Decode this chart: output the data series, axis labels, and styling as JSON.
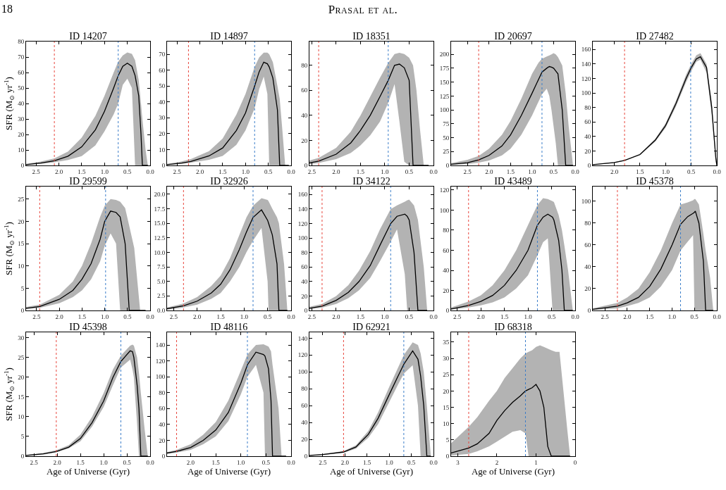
{
  "chart_data": [
    {
      "type": "line",
      "title": "ID 14207",
      "annotations": [
        "18",
        "Prasal et al."
      ],
      "ylabel": "SFR (M$_{⊙}$ yr$^{-1}$)",
      "xlim": [
        2.72,
        0
      ],
      "xticks": [
        2.5,
        {
          "value": 2,
          "label": "2.0"
        },
        1.5,
        {
          "value": 1,
          "label": "1.0"
        },
        0.5,
        {
          "value": 0,
          "label": "0.0"
        }
      ],
      "ylim": [
        0,
        80
      ],
      "yticks": [
        0,
        10,
        20,
        30,
        40,
        50,
        60,
        70,
        80
      ],
      "grid": false,
      "ref_lines": [
        {
          "axis": "x",
          "value": 2.1,
          "color": "#e8453c",
          "line_style": "dotted"
        },
        {
          "axis": "x",
          "value": 0.7,
          "color": "#3a7dc9",
          "line_style": "dotted"
        }
      ],
      "series": [
        {
          "color": "#000000",
          "x": [
            2.72,
            2.4,
            2.1,
            1.8,
            1.5,
            1.2,
            1.0,
            0.8,
            0.7,
            0.6,
            0.5,
            0.4,
            0.33,
            0.25,
            0.2,
            0.17,
            0.1,
            0.05
          ],
          "values": [
            0.5,
            1.5,
            3,
            6,
            12,
            23,
            35,
            50,
            58,
            64,
            66,
            64,
            58,
            45,
            20,
            0,
            0,
            0
          ],
          "lower": [
            0.3,
            1,
            2,
            3.5,
            6,
            13,
            22,
            33,
            40,
            52,
            56,
            50,
            0,
            0,
            0,
            0,
            0,
            0
          ],
          "upper": [
            1,
            2.5,
            4.5,
            9,
            18,
            32,
            45,
            60,
            67,
            71,
            73,
            72,
            68,
            55,
            40,
            30,
            10,
            0
          ]
        }
      ]
    },
    {
      "type": "line",
      "title": "ID 14897",
      "xlim": [
        2.72,
        0
      ],
      "xticks": [
        2.5,
        {
          "value": 2,
          "label": "2.0"
        },
        1.5,
        {
          "value": 1,
          "label": "1.0"
        },
        0.5,
        {
          "value": 0,
          "label": "0.0"
        }
      ],
      "ylim": [
        0,
        78
      ],
      "yticks": [
        0,
        10,
        20,
        30,
        40,
        50,
        60,
        70
      ],
      "grid": false,
      "ref_lines": [
        {
          "axis": "x",
          "value": 2.25,
          "color": "#e8453c",
          "line_style": "dotted"
        },
        {
          "axis": "x",
          "value": 0.8,
          "color": "#3a7dc9",
          "line_style": "dotted"
        }
      ],
      "series": [
        {
          "color": "#000000",
          "x": [
            2.72,
            2.4,
            2.2,
            1.8,
            1.5,
            1.2,
            1.0,
            0.8,
            0.7,
            0.6,
            0.52,
            0.48,
            0.4,
            0.3,
            0.25,
            0.2,
            0.13,
            0.05
          ],
          "values": [
            0.5,
            1.5,
            2.5,
            6,
            11,
            22,
            33,
            50,
            59,
            65,
            64,
            62,
            55,
            35,
            0,
            0,
            0,
            0
          ],
          "lower": [
            0.3,
            1,
            1.8,
            3.5,
            6,
            13,
            22,
            36,
            48,
            56,
            45,
            0,
            0,
            0,
            0,
            0,
            0,
            0
          ],
          "upper": [
            1,
            2.5,
            4,
            9,
            17,
            32,
            45,
            62,
            68,
            71,
            71,
            70,
            65,
            50,
            42,
            25,
            0,
            0
          ]
        }
      ]
    },
    {
      "type": "line",
      "title": "ID 18351",
      "xlim": [
        2.55,
        0
      ],
      "xticks": [
        2.5,
        {
          "value": 2,
          "label": "2.0"
        },
        1.5,
        {
          "value": 1,
          "label": "1.0"
        },
        0.5,
        {
          "value": 0,
          "label": "0.0"
        }
      ],
      "ylim": [
        0,
        99
      ],
      "yticks": [
        0,
        20,
        40,
        60,
        80
      ],
      "grid": false,
      "ref_lines": [
        {
          "axis": "x",
          "value": 2.36,
          "color": "#e8453c",
          "line_style": "dotted"
        },
        {
          "axis": "x",
          "value": 0.93,
          "color": "#3a7dc9",
          "line_style": "dotted"
        }
      ],
      "series": [
        {
          "color": "#000000",
          "x": [
            2.55,
            2.36,
            2.0,
            1.7,
            1.5,
            1.3,
            1.1,
            0.93,
            0.8,
            0.7,
            0.6,
            0.5,
            0.42,
            0.35,
            0.28,
            0.2,
            0.1
          ],
          "values": [
            2,
            3.5,
            9,
            18,
            28,
            40,
            55,
            68,
            80,
            81,
            78,
            68,
            0,
            0,
            0,
            0,
            0
          ],
          "lower": [
            1,
            2,
            5,
            10,
            16,
            24,
            35,
            50,
            65,
            35,
            3,
            0,
            0,
            0,
            0,
            0,
            0
          ],
          "upper": [
            4,
            6,
            14,
            27,
            40,
            55,
            70,
            82,
            89,
            90,
            89,
            86,
            80,
            60,
            30,
            0,
            0
          ]
        }
      ]
    },
    {
      "type": "line",
      "title": "ID 20697",
      "xlim": [
        2.88,
        0
      ],
      "xticks": [
        2.5,
        {
          "value": 2,
          "label": "2.0"
        },
        1.5,
        {
          "value": 1,
          "label": "1.0"
        },
        0.5,
        {
          "value": 0,
          "label": "0.0"
        }
      ],
      "ylim": [
        0,
        223
      ],
      "yticks": [
        0,
        25,
        50,
        75,
        100,
        125,
        150,
        175,
        200
      ],
      "grid": false,
      "ref_lines": [
        {
          "axis": "x",
          "value": 2.24,
          "color": "#e8453c",
          "line_style": "dotted"
        },
        {
          "axis": "x",
          "value": 0.77,
          "color": "#3a7dc9",
          "line_style": "dotted"
        }
      ],
      "series": [
        {
          "color": "#000000",
          "x": [
            2.88,
            2.5,
            2.24,
            2.0,
            1.7,
            1.5,
            1.25,
            1.0,
            0.85,
            0.77,
            0.66,
            0.6,
            0.55,
            0.5,
            0.45,
            0.4,
            0.3,
            0.22,
            0.15,
            0.05
          ],
          "values": [
            2,
            5,
            10,
            18,
            35,
            55,
            90,
            130,
            155,
            168,
            175,
            178,
            177,
            175,
            170,
            165,
            100,
            0,
            0,
            0
          ],
          "lower": [
            1,
            2.5,
            5,
            9,
            18,
            30,
            55,
            90,
            115,
            128,
            138,
            125,
            100,
            70,
            40,
            0,
            0,
            0,
            0,
            0
          ],
          "upper": [
            4,
            10,
            17,
            30,
            55,
            80,
            120,
            165,
            185,
            192,
            196,
            198,
            200,
            202,
            200,
            195,
            180,
            130,
            70,
            0
          ]
        }
      ]
    },
    {
      "type": "line",
      "title": "ID 27482",
      "xlim": [
        2.42,
        0
      ],
      "xticks": [
        {
          "value": 2,
          "label": "2.0"
        },
        1.5,
        {
          "value": 1,
          "label": "1.0"
        },
        0.5,
        {
          "value": 0,
          "label": "0.0"
        }
      ],
      "ylim": [
        0,
        171
      ],
      "yticks": [
        0,
        20,
        40,
        60,
        80,
        100,
        120,
        140,
        160
      ],
      "grid": false,
      "ref_lines": [
        {
          "axis": "x",
          "value": 1.8,
          "color": "#e8453c",
          "line_style": "dotted"
        },
        {
          "axis": "x",
          "value": 0.51,
          "color": "#3a7dc9",
          "line_style": "dotted"
        }
      ],
      "series": [
        {
          "color": "#000000",
          "x": [
            2.42,
            2.0,
            1.8,
            1.5,
            1.2,
            1.0,
            0.8,
            0.6,
            0.5,
            0.4,
            0.32,
            0.2,
            0.1,
            0.02,
            0
          ],
          "values": [
            1,
            4,
            7,
            15,
            35,
            55,
            85,
            120,
            135,
            147,
            150,
            135,
            80,
            10,
            0
          ],
          "lower": [
            0.8,
            3.5,
            6.5,
            14,
            33,
            52,
            81,
            115,
            130,
            143,
            146,
            128,
            70,
            5,
            0
          ],
          "upper": [
            1.2,
            4.5,
            7.5,
            16,
            37,
            58,
            89,
            125,
            140,
            152,
            155,
            140,
            88,
            15,
            0
          ]
        }
      ]
    },
    {
      "type": "line",
      "title": "ID 29599",
      "ylabel": "SFR (M$_{⊙}$ yr$^{-1}$)",
      "xlim": [
        2.73,
        0
      ],
      "xticks": [
        2.5,
        {
          "value": 2,
          "label": "2.0"
        },
        1.5,
        {
          "value": 1,
          "label": "1.0"
        },
        0.5,
        {
          "value": 0,
          "label": "0.0"
        }
      ],
      "ylim": [
        0,
        27.8
      ],
      "yticks": [
        0,
        5,
        10,
        15,
        20,
        25
      ],
      "grid": false,
      "ref_lines": [
        {
          "axis": "x",
          "value": 2.43,
          "color": "#e8453c",
          "line_style": "dotted"
        },
        {
          "axis": "x",
          "value": 0.98,
          "color": "#3a7dc9",
          "line_style": "dotted"
        }
      ],
      "series": [
        {
          "color": "#000000",
          "x": [
            2.73,
            2.43,
            2.0,
            1.7,
            1.5,
            1.3,
            1.1,
            1.0,
            0.87,
            0.75,
            0.66,
            0.55,
            0.46,
            0.35,
            0.22,
            0.1
          ],
          "values": [
            0.5,
            0.9,
            2.5,
            4.5,
            7,
            10.5,
            16,
            20,
            22.3,
            22,
            21,
            15,
            0,
            0,
            0,
            0
          ],
          "lower": [
            0.3,
            0.6,
            1.6,
            3,
            4.5,
            7,
            11,
            14.5,
            17.3,
            15,
            0,
            0,
            0,
            0,
            0,
            0
          ],
          "upper": [
            0.8,
            1.3,
            3.5,
            6.5,
            10,
            15,
            21,
            23.5,
            25,
            24.8,
            24.4,
            23,
            19,
            14,
            0,
            0
          ]
        }
      ]
    },
    {
      "type": "line",
      "title": "ID 32926",
      "xlim": [
        2.64,
        0
      ],
      "xticks": [
        2.5,
        {
          "value": 2,
          "label": "2.0"
        },
        1.5,
        {
          "value": 1,
          "label": "1.0"
        },
        0.5,
        {
          "value": 0,
          "label": "0.0"
        }
      ],
      "ylim": [
        0,
        21.3
      ],
      "yticks": [
        {
          "value": 0,
          "label": "0.0"
        },
        2.5,
        {
          "value": 5,
          "label": "5.0"
        },
        7.5,
        {
          "value": 10,
          "label": "10.0"
        },
        12.5,
        {
          "value": 15,
          "label": "15.0"
        },
        17.5,
        {
          "value": 20,
          "label": "20.0"
        }
      ],
      "grid": false,
      "ref_lines": [
        {
          "axis": "x",
          "value": 2.29,
          "color": "#e8453c",
          "line_style": "dotted"
        },
        {
          "axis": "x",
          "value": 0.81,
          "color": "#3a7dc9",
          "line_style": "dotted"
        }
      ],
      "series": [
        {
          "color": "#000000",
          "x": [
            2.64,
            2.29,
            2.0,
            1.7,
            1.5,
            1.3,
            1.1,
            0.95,
            0.81,
            0.63,
            0.5,
            0.48,
            0.4,
            0.3,
            0.26,
            0.15,
            0.08
          ],
          "values": [
            0.3,
            0.8,
            1.6,
            3,
            4.5,
            7,
            10.5,
            13.5,
            16,
            17.3,
            15.5,
            15,
            13,
            8,
            0,
            0,
            0
          ],
          "lower": [
            0.15,
            0.5,
            1,
            2,
            3,
            5,
            7.5,
            10,
            12,
            14.2,
            5,
            0,
            0,
            0,
            0,
            0,
            0
          ],
          "upper": [
            0.5,
            1.2,
            2.3,
            4.2,
            6,
            9,
            13,
            16,
            18,
            19.3,
            19,
            18.8,
            17.5,
            16,
            15,
            8,
            0
          ]
        }
      ]
    },
    {
      "type": "line",
      "title": "ID 34122",
      "xlim": [
        2.55,
        0
      ],
      "xticks": [
        2.5,
        {
          "value": 2,
          "label": "2.0"
        },
        1.5,
        {
          "value": 1,
          "label": "1.0"
        },
        0.5,
        {
          "value": 0,
          "label": "0.0"
        }
      ],
      "ylim": [
        0,
        171
      ],
      "yticks": [
        0,
        20,
        40,
        60,
        80,
        100,
        120,
        140,
        160
      ],
      "grid": false,
      "ref_lines": [
        {
          "axis": "x",
          "value": 2.29,
          "color": "#e8453c",
          "line_style": "dotted"
        },
        {
          "axis": "x",
          "value": 0.88,
          "color": "#3a7dc9",
          "line_style": "dotted"
        }
      ],
      "series": [
        {
          "color": "#000000",
          "x": [
            2.55,
            2.29,
            2.0,
            1.75,
            1.53,
            1.3,
            1.1,
            0.88,
            0.75,
            0.59,
            0.54,
            0.5,
            0.4,
            0.32,
            0.2,
            0.13
          ],
          "values": [
            3,
            6,
            14,
            25,
            40,
            62,
            90,
            120,
            130,
            133,
            130,
            125,
            80,
            0,
            0,
            0
          ],
          "lower": [
            2,
            4,
            9,
            17,
            28,
            45,
            68,
            95,
            112,
            50,
            0,
            0,
            0,
            0,
            0,
            0
          ],
          "upper": [
            5,
            9,
            20,
            35,
            55,
            82,
            112,
            140,
            145,
            150,
            152,
            153,
            145,
            125,
            60,
            0
          ]
        }
      ]
    },
    {
      "type": "line",
      "title": "ID 43489",
      "xlim": [
        2.63,
        0
      ],
      "xticks": [
        2.5,
        {
          "value": 2,
          "label": "2.0"
        },
        1.5,
        {
          "value": 1,
          "label": "1.0"
        },
        0.5,
        {
          "value": 0,
          "label": "0.0"
        }
      ],
      "ylim": [
        0,
        123.5
      ],
      "yticks": [
        0,
        20,
        40,
        60,
        80,
        100,
        120
      ],
      "grid": false,
      "ref_lines": [
        {
          "axis": "x",
          "value": 2.26,
          "color": "#e8453c",
          "line_style": "dotted"
        },
        {
          "axis": "x",
          "value": 0.8,
          "color": "#3a7dc9",
          "line_style": "dotted"
        }
      ],
      "series": [
        {
          "color": "#000000",
          "x": [
            2.63,
            2.26,
            2.0,
            1.75,
            1.5,
            1.25,
            1.0,
            0.8,
            0.68,
            0.58,
            0.48,
            0.45,
            0.35,
            0.28,
            0.23,
            0.15,
            0.05
          ],
          "values": [
            1.5,
            5,
            9,
            15,
            25,
            40,
            60,
            85,
            93,
            96,
            93,
            90,
            70,
            40,
            0,
            0,
            0
          ],
          "lower": [
            0.8,
            3,
            5,
            8,
            13,
            22,
            35,
            55,
            68,
            72,
            0,
            0,
            0,
            0,
            0,
            0,
            0
          ],
          "upper": [
            3,
            9,
            15,
            25,
            40,
            60,
            85,
            105,
            112,
            111,
            109,
            108,
            95,
            80,
            65,
            40,
            0
          ]
        }
      ]
    },
    {
      "type": "line",
      "title": "ID 45378",
      "xlim": [
        2.77,
        0
      ],
      "xticks": [
        2.5,
        {
          "value": 2,
          "label": "2.0"
        },
        1.5,
        {
          "value": 1,
          "label": "1.0"
        },
        0.5,
        {
          "value": 0,
          "label": "0.0"
        }
      ],
      "ylim": [
        0,
        113.5
      ],
      "yticks": [
        0,
        20,
        40,
        60,
        80,
        100
      ],
      "grid": false,
      "ref_lines": [
        {
          "axis": "x",
          "value": 2.22,
          "color": "#e8453c",
          "line_style": "dotted"
        },
        {
          "axis": "x",
          "value": 0.81,
          "color": "#3a7dc9",
          "line_style": "dotted"
        }
      ],
      "series": [
        {
          "color": "#000000",
          "x": [
            2.77,
            2.22,
            2.0,
            1.75,
            1.5,
            1.25,
            1.0,
            0.81,
            0.65,
            0.53,
            0.5,
            0.48,
            0.4,
            0.3,
            0.25,
            0.15,
            0.08
          ],
          "values": [
            1,
            4,
            7,
            12,
            22,
            38,
            60,
            79,
            86,
            89,
            90,
            91,
            80,
            45,
            0,
            0,
            0
          ],
          "lower": [
            0.5,
            2,
            4,
            7,
            12,
            22,
            37,
            55,
            63,
            69,
            0,
            0,
            0,
            0,
            0,
            0,
            0
          ],
          "upper": [
            2,
            7,
            12,
            20,
            35,
            55,
            80,
            97,
            99,
            101,
            102,
            102,
            97,
            70,
            55,
            30,
            0
          ]
        }
      ]
    },
    {
      "type": "line",
      "title": "ID 45398",
      "xlabel": "Age of Universe (Gyr)",
      "ylabel": "SFR (M$_{⊙}$ yr$^{-1}$)",
      "xlim": [
        2.67,
        0
      ],
      "xticks": [
        2.5,
        {
          "value": 2,
          "label": "2.0"
        },
        1.5,
        {
          "value": 1,
          "label": "1.0"
        },
        0.5,
        {
          "value": 0,
          "label": "0.0"
        }
      ],
      "ylim": [
        0,
        31.4
      ],
      "yticks": [
        0,
        5,
        10,
        15,
        20,
        25,
        30
      ],
      "grid": false,
      "ref_lines": [
        {
          "axis": "x",
          "value": 2.02,
          "color": "#e8453c",
          "line_style": "dotted"
        },
        {
          "axis": "x",
          "value": 0.63,
          "color": "#3a7dc9",
          "line_style": "dotted"
        }
      ],
      "series": [
        {
          "color": "#000000",
          "x": [
            2.67,
            2.3,
            2.02,
            1.75,
            1.5,
            1.25,
            1.0,
            0.8,
            0.63,
            0.43,
            0.38,
            0.35,
            0.28,
            0.24,
            0.2,
            0.12,
            0.05
          ],
          "values": [
            0.2,
            0.6,
            1.2,
            2.3,
            4.5,
            8.5,
            14,
            20,
            24,
            26.7,
            26.5,
            25,
            18,
            12,
            0,
            0,
            0
          ],
          "lower": [
            0.1,
            0.4,
            1,
            2,
            3.8,
            7.5,
            12.5,
            18,
            22.5,
            24.5,
            22,
            20,
            8,
            0,
            0,
            0,
            0
          ],
          "upper": [
            0.3,
            0.8,
            1.5,
            2.8,
            5.5,
            10,
            16,
            22,
            25.5,
            28,
            28.3,
            28,
            25,
            21,
            16,
            7,
            0
          ]
        }
      ]
    },
    {
      "type": "line",
      "title": "ID 48116",
      "xlabel": "Age of Universe (Gyr)",
      "xlim": [
        2.47,
        0
      ],
      "xticks": [
        {
          "value": 2,
          "label": "2.0"
        },
        1.5,
        {
          "value": 1,
          "label": "1.0"
        },
        0.5,
        {
          "value": 0,
          "label": "0.0"
        }
      ],
      "ylim": [
        0,
        156
      ],
      "yticks": [
        0,
        20,
        40,
        60,
        80,
        100,
        120,
        140
      ],
      "grid": false,
      "ref_lines": [
        {
          "axis": "x",
          "value": 2.28,
          "color": "#e8453c",
          "line_style": "dotted"
        },
        {
          "axis": "x",
          "value": 0.87,
          "color": "#3a7dc9",
          "line_style": "dotted"
        }
      ],
      "series": [
        {
          "color": "#000000",
          "x": [
            2.47,
            2.28,
            2.0,
            1.75,
            1.5,
            1.25,
            1.0,
            0.87,
            0.7,
            0.55,
            0.52,
            0.45,
            0.4,
            0.37,
            0.25,
            0.19,
            0.1
          ],
          "values": [
            4,
            6,
            11,
            20,
            33,
            55,
            92,
            115,
            131,
            128,
            126,
            110,
            70,
            0,
            0,
            0,
            0
          ],
          "lower": [
            3,
            4.5,
            8,
            15,
            25,
            44,
            78,
            100,
            115,
            80,
            0,
            0,
            0,
            0,
            0,
            0,
            0
          ],
          "upper": [
            5,
            8,
            15,
            27,
            43,
            70,
            108,
            128,
            140,
            141,
            140,
            138,
            132,
            115,
            60,
            0,
            0
          ]
        }
      ]
    },
    {
      "type": "line",
      "title": "ID 62921",
      "xlabel": "Age of Universe (Gyr)",
      "xlim": [
        2.8,
        0
      ],
      "xticks": [
        2.5,
        {
          "value": 2,
          "label": "2.0"
        },
        1.5,
        {
          "value": 1,
          "label": "1.0"
        },
        0.5,
        {
          "value": 0,
          "label": "0.0"
        }
      ],
      "ylim": [
        0,
        147
      ],
      "yticks": [
        0,
        20,
        40,
        60,
        80,
        100,
        120,
        140
      ],
      "grid": false,
      "ref_lines": [
        {
          "axis": "x",
          "value": 2.03,
          "color": "#e8453c",
          "line_style": "dotted"
        },
        {
          "axis": "x",
          "value": 0.67,
          "color": "#3a7dc9",
          "line_style": "dotted"
        }
      ],
      "series": [
        {
          "color": "#000000",
          "x": [
            2.8,
            2.5,
            2.03,
            1.75,
            1.47,
            1.25,
            1.0,
            0.8,
            0.67,
            0.47,
            0.35,
            0.29,
            0.22,
            0.15,
            0.06
          ],
          "values": [
            1,
            2,
            5,
            11,
            26,
            45,
            73,
            95,
            109,
            125,
            115,
            95,
            60,
            0,
            0
          ],
          "lower": [
            0.3,
            1.5,
            4,
            9,
            22,
            38,
            64,
            85,
            98,
            108,
            60,
            0,
            0,
            0,
            0
          ],
          "upper": [
            0.8,
            2.5,
            6,
            13,
            30,
            52,
            82,
            105,
            120,
            135,
            132,
            122,
            100,
            60,
            0
          ]
        }
      ]
    },
    {
      "type": "line",
      "title": "ID 68318",
      "xlabel": "Age of Universe (Gyr)",
      "xlim": [
        3.17,
        0
      ],
      "xticks": [
        3,
        2,
        1,
        0
      ],
      "ylim": [
        0,
        38
      ],
      "yticks": [
        0,
        5,
        10,
        15,
        20,
        25,
        30,
        35
      ],
      "grid": false,
      "ref_lines": [
        {
          "axis": "x",
          "value": 2.72,
          "color": "#e8453c",
          "line_style": "dotted"
        },
        {
          "axis": "x",
          "value": 1.27,
          "color": "#3a7dc9",
          "line_style": "dotted"
        }
      ],
      "series": [
        {
          "color": "#000000",
          "x": [
            3.17,
            2.72,
            2.5,
            2.2,
            2.0,
            1.8,
            1.6,
            1.4,
            1.27,
            1.19,
            1.1,
            1.0,
            0.9,
            0.8,
            0.7,
            0.61,
            0.5,
            0.4,
            0.3,
            0.2,
            0.13
          ],
          "values": [
            1,
            2.5,
            3.8,
            7,
            11,
            14,
            16.5,
            18.5,
            20,
            20.5,
            21,
            22,
            20,
            15,
            3,
            0,
            0,
            0,
            0,
            0,
            0
          ],
          "lower": [
            0.2,
            0.7,
            1.5,
            3,
            4.5,
            6,
            7.5,
            8,
            7,
            0,
            0,
            0,
            0,
            0,
            0,
            0,
            0,
            0,
            0,
            0,
            0
          ],
          "upper": [
            4,
            9,
            12,
            17,
            20,
            24,
            27,
            30,
            31.5,
            32,
            32.5,
            33.5,
            34,
            33.5,
            33,
            32.5,
            32,
            32,
            20,
            8,
            0
          ]
        }
      ]
    }
  ]
}
